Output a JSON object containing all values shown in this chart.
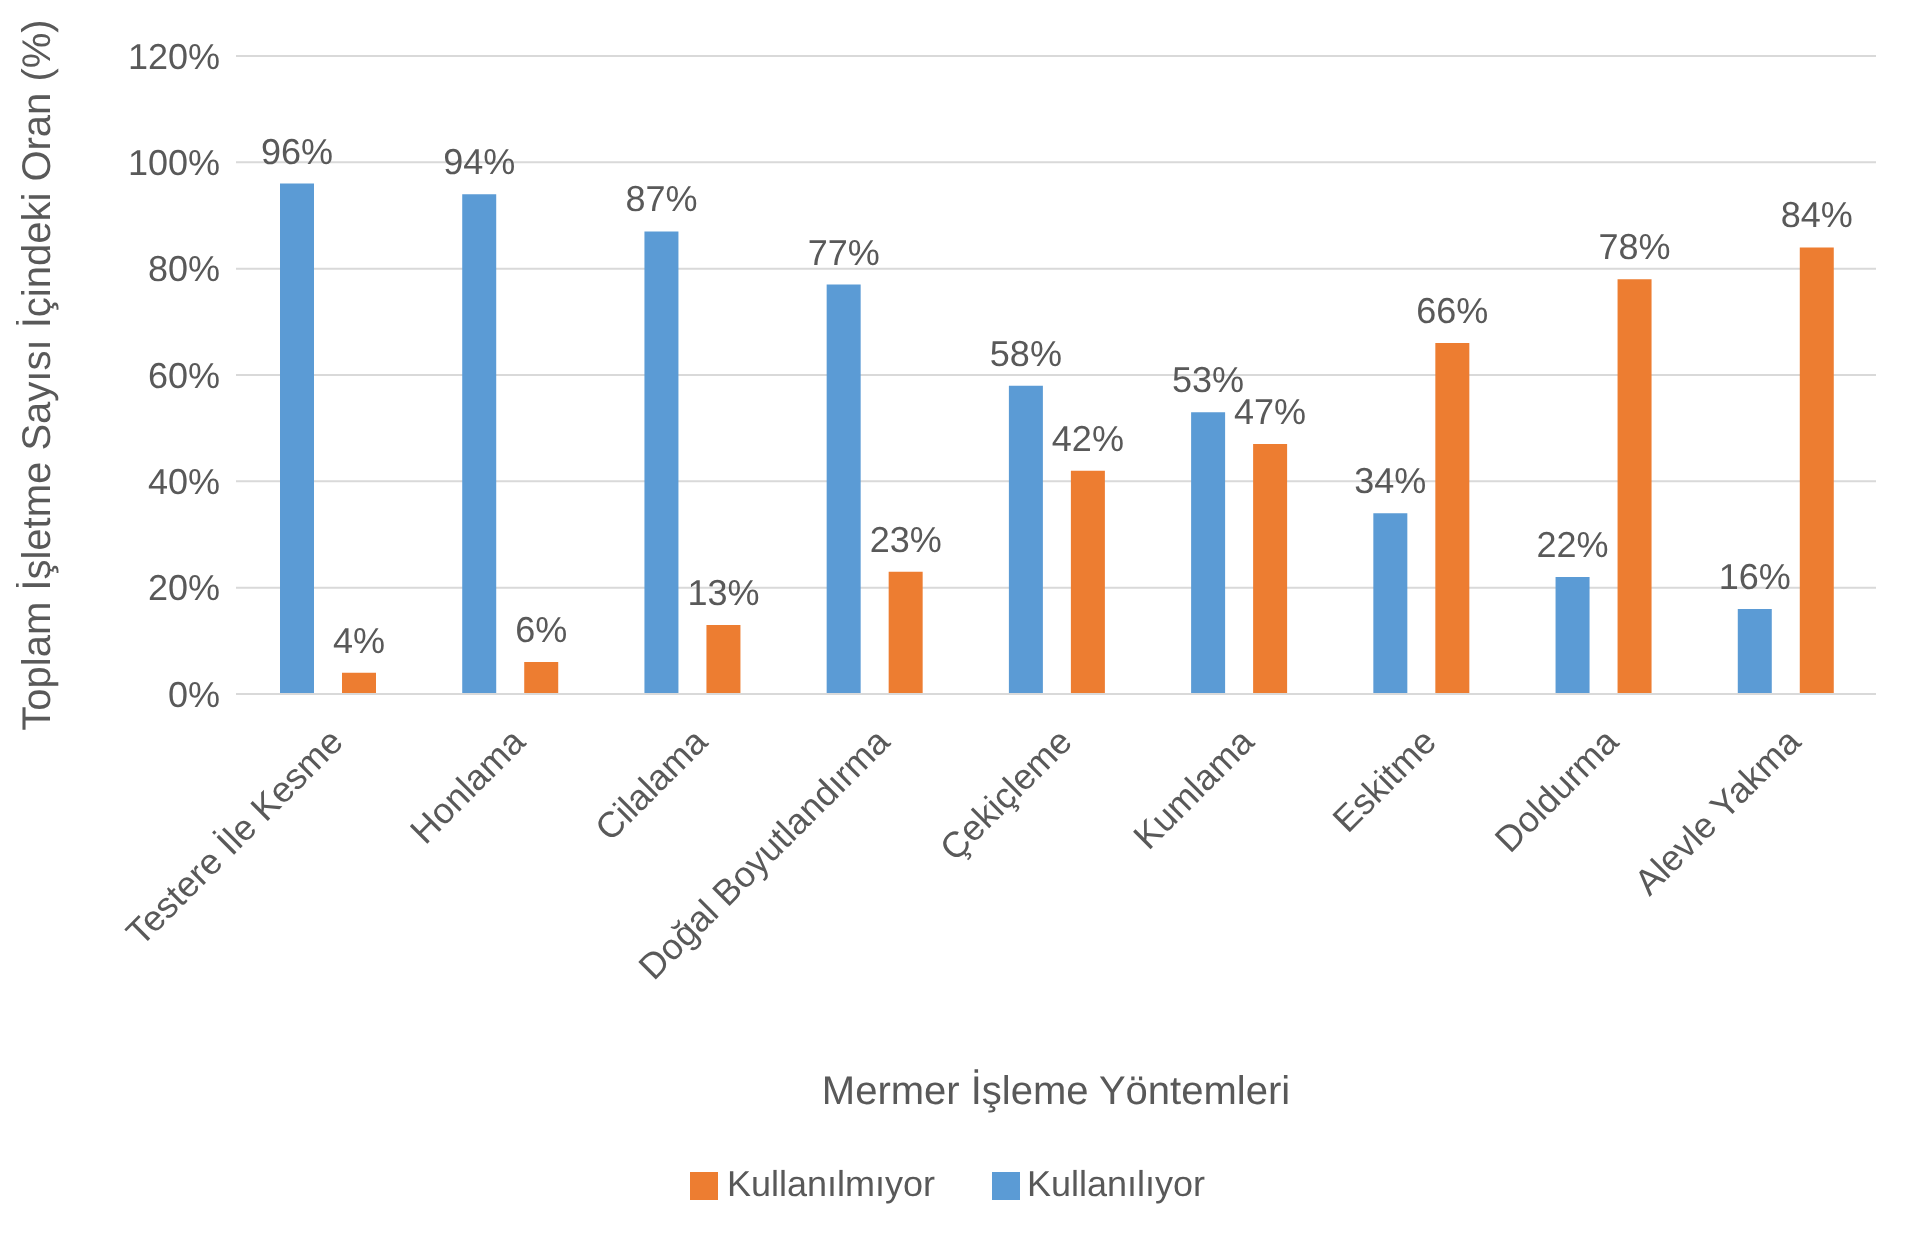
{
  "chart_data": {
    "type": "bar",
    "xlabel": "Mermer İşleme Yöntemleri",
    "ylabel": "Toplam İşletme Sayısı İçindeki Oran (%)",
    "categories": [
      "Testere İle Kesme",
      "Honlama",
      "Cilalama",
      "Doğal Boyutlandırma",
      "Çekiçleme",
      "Kumlama",
      "Eskitme",
      "Doldurma",
      "Alevle Yakma"
    ],
    "series": [
      {
        "name": "Kullanılıyor",
        "color": "#5b9bd5",
        "values": [
          96,
          94,
          87,
          77,
          58,
          53,
          34,
          22,
          16
        ],
        "value_labels": [
          "96%",
          "94%",
          "87%",
          "77%",
          "58%",
          "53%",
          "34%",
          "22%",
          "16%"
        ]
      },
      {
        "name": "Kullanılmıyor",
        "color": "#ed7d31",
        "values": [
          4,
          6,
          13,
          23,
          42,
          47,
          66,
          78,
          84
        ],
        "value_labels": [
          "4%",
          "6%",
          "13%",
          "23%",
          "42%",
          "47%",
          "66%",
          "78%",
          "84%"
        ]
      }
    ],
    "ylim": [
      0,
      120
    ],
    "yticks": [
      {
        "value": 0,
        "label": "0%"
      },
      {
        "value": 20,
        "label": "20%"
      },
      {
        "value": 40,
        "label": "40%"
      },
      {
        "value": 60,
        "label": "60%"
      },
      {
        "value": 80,
        "label": "80%"
      },
      {
        "value": 100,
        "label": "100%"
      },
      {
        "value": 120,
        "label": "120%"
      }
    ],
    "grid": "y",
    "legend": "bottom"
  }
}
